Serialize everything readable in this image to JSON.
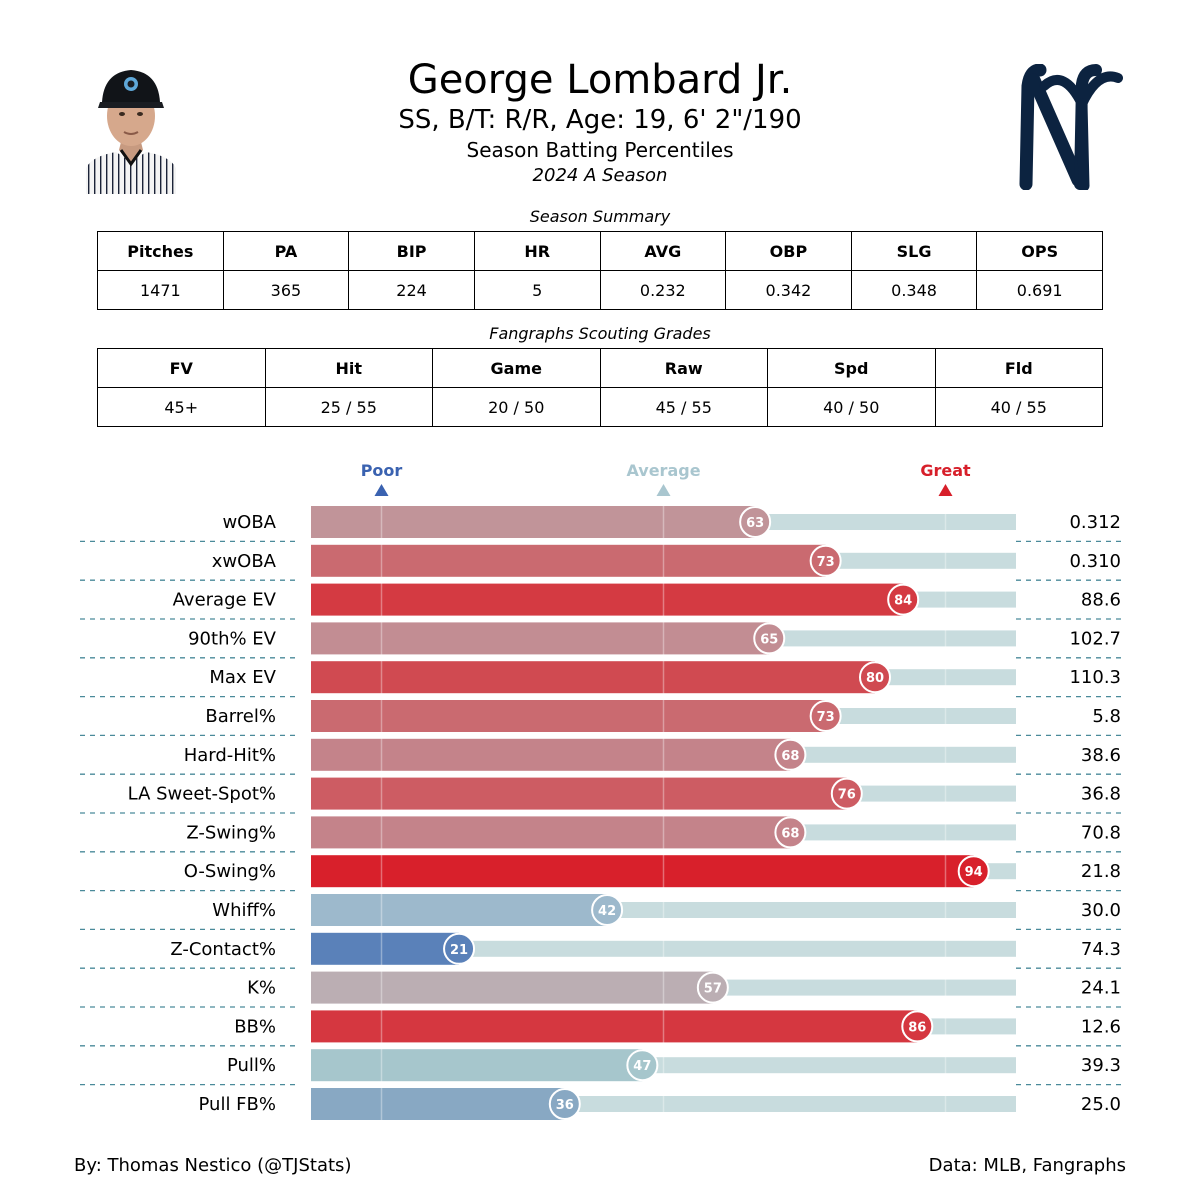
{
  "header": {
    "player_name": "George Lombard Jr.",
    "player_info": "SS, B/T: R/R, Age: 19, 6' 2\"/190",
    "subtitle": "Season Batting Percentiles",
    "season": "2024 A Season"
  },
  "season_summary": {
    "caption": "Season Summary",
    "columns": [
      "Pitches",
      "PA",
      "BIP",
      "HR",
      "AVG",
      "OBP",
      "SLG",
      "OPS"
    ],
    "values": [
      "1471",
      "365",
      "224",
      "5",
      "0.232",
      "0.342",
      "0.348",
      "0.691"
    ]
  },
  "scouting_grades": {
    "caption": "Fangraphs Scouting Grades",
    "columns": [
      "FV",
      "Hit",
      "Game",
      "Raw",
      "Spd",
      "Fld"
    ],
    "values": [
      "45+",
      "25 / 55",
      "20 / 50",
      "45 / 55",
      "40 / 50",
      "40 / 55"
    ]
  },
  "chart_data": {
    "type": "bar",
    "orientation": "horizontal",
    "xlim": [
      0,
      100
    ],
    "grid": true,
    "reference_markers": [
      {
        "label": "Poor",
        "value": 10,
        "color": "#3a62b0"
      },
      {
        "label": "Average",
        "value": 50,
        "color": "#a9c6cf"
      },
      {
        "label": "Great",
        "value": 90,
        "color": "#d71f2a"
      }
    ],
    "categories": [
      "wOBA",
      "xwOBA",
      "Average EV",
      "90th% EV",
      "Max EV",
      "Barrel%",
      "Hard-Hit%",
      "LA Sweet-Spot%",
      "Z-Swing%",
      "O-Swing%",
      "Whiff%",
      "Z-Contact%",
      "K%",
      "BB%",
      "Pull%",
      "Pull FB%"
    ],
    "percentiles": [
      63,
      73,
      84,
      65,
      80,
      73,
      68,
      76,
      68,
      94,
      42,
      21,
      57,
      86,
      47,
      36
    ],
    "stat_values": [
      "0.312",
      "0.310",
      "88.6",
      "102.7",
      "110.3",
      "5.8",
      "38.6",
      "36.8",
      "70.8",
      "21.8",
      "30.0",
      "74.3",
      "24.1",
      "12.6",
      "39.3",
      "25.0"
    ],
    "colors": [
      "#c19499",
      "#ca6a70",
      "#d43a42",
      "#c28d93",
      "#d04a51",
      "#ca6a70",
      "#c4838a",
      "#cd5c63",
      "#c4838a",
      "#d8202b",
      "#9db9cc",
      "#5a81b9",
      "#bbaeb3",
      "#d53740",
      "#a6c6cc",
      "#88a8c3"
    ],
    "track_color": "#c8dcde"
  },
  "footer": {
    "credit": "By: Thomas Nestico (@TJStats)",
    "source": "Data: MLB, Fangraphs"
  }
}
